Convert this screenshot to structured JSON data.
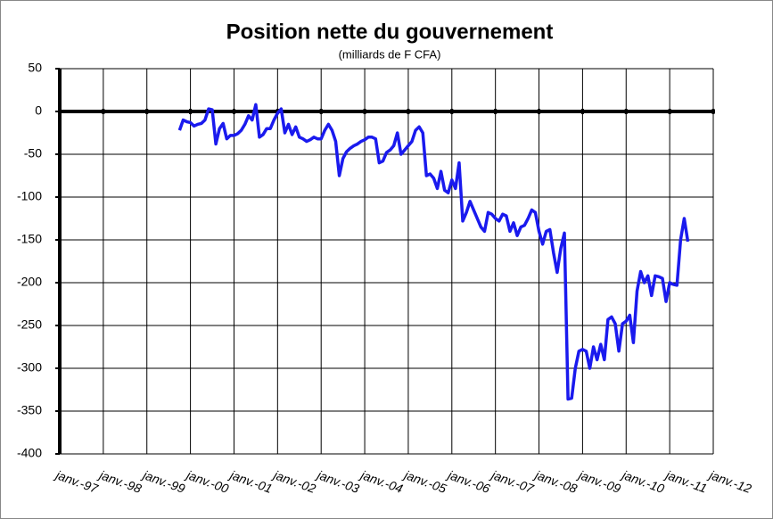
{
  "chart_data": {
    "type": "line",
    "title": "Position nette du gouvernement",
    "subtitle": "(milliards de F CFA)",
    "x": [
      "1999-10",
      "1999-11",
      "1999-12",
      "2000-01",
      "2000-02",
      "2000-03",
      "2000-04",
      "2000-05",
      "2000-06",
      "2000-07",
      "2000-08",
      "2000-09",
      "2000-10",
      "2000-11",
      "2000-12",
      "2001-01",
      "2001-02",
      "2001-03",
      "2001-04",
      "2001-05",
      "2001-06",
      "2001-07",
      "2001-08",
      "2001-09",
      "2001-10",
      "2001-11",
      "2001-12",
      "2002-01",
      "2002-02",
      "2002-03",
      "2002-04",
      "2002-05",
      "2002-06",
      "2002-07",
      "2002-08",
      "2002-09",
      "2002-10",
      "2002-11",
      "2002-12",
      "2003-01",
      "2003-02",
      "2003-03",
      "2003-04",
      "2003-05",
      "2003-06",
      "2003-07",
      "2003-08",
      "2003-09",
      "2003-10",
      "2003-11",
      "2003-12",
      "2004-01",
      "2004-02",
      "2004-03",
      "2004-04",
      "2004-05",
      "2004-06",
      "2004-07",
      "2004-08",
      "2004-09",
      "2004-10",
      "2004-11",
      "2004-12",
      "2005-01",
      "2005-02",
      "2005-03",
      "2005-04",
      "2005-05",
      "2005-06",
      "2005-07",
      "2005-08",
      "2005-09",
      "2005-10",
      "2005-11",
      "2005-12",
      "2006-01",
      "2006-02",
      "2006-03",
      "2006-04",
      "2006-05",
      "2006-06",
      "2006-07",
      "2006-08",
      "2006-09",
      "2006-10",
      "2006-11",
      "2006-12",
      "2007-01",
      "2007-02",
      "2007-03",
      "2007-04",
      "2007-05",
      "2007-06",
      "2007-07",
      "2007-08",
      "2007-09",
      "2007-10",
      "2007-11",
      "2007-12",
      "2008-01",
      "2008-02",
      "2008-03",
      "2008-04",
      "2008-05",
      "2008-06",
      "2008-07",
      "2008-08",
      "2008-09",
      "2008-10",
      "2008-11",
      "2008-12",
      "2009-01",
      "2009-02",
      "2009-03",
      "2009-04",
      "2009-05",
      "2009-06",
      "2009-07",
      "2009-08",
      "2009-09",
      "2009-10",
      "2009-11",
      "2009-12",
      "2010-01",
      "2010-02",
      "2010-03",
      "2010-04",
      "2010-05",
      "2010-06",
      "2010-07",
      "2010-08",
      "2010-09",
      "2010-10",
      "2010-11",
      "2010-12",
      "2011-01",
      "2011-02",
      "2011-03",
      "2011-04",
      "2011-05",
      "2011-06"
    ],
    "values": [
      -22,
      -10,
      -12,
      -13,
      -17,
      -15,
      -14,
      -10,
      3,
      2,
      -38,
      -20,
      -14,
      -32,
      -28,
      -28,
      -26,
      -22,
      -15,
      -5,
      -10,
      8,
      -30,
      -27,
      -20,
      -20,
      -10,
      -2,
      3,
      -25,
      -15,
      -27,
      -18,
      -30,
      -32,
      -35,
      -33,
      -30,
      -32,
      -32,
      -22,
      -15,
      -22,
      -35,
      -75,
      -55,
      -47,
      -43,
      -40,
      -38,
      -35,
      -33,
      -30,
      -30,
      -32,
      -60,
      -58,
      -48,
      -45,
      -40,
      -25,
      -50,
      -45,
      -40,
      -35,
      -22,
      -18,
      -25,
      -75,
      -73,
      -78,
      -90,
      -70,
      -92,
      -95,
      -80,
      -90,
      -60,
      -128,
      -118,
      -105,
      -115,
      -125,
      -135,
      -140,
      -118,
      -120,
      -125,
      -128,
      -120,
      -122,
      -140,
      -130,
      -145,
      -135,
      -133,
      -125,
      -115,
      -118,
      -140,
      -155,
      -140,
      -138,
      -165,
      -188,
      -160,
      -142,
      -336,
      -335,
      -300,
      -280,
      -278,
      -280,
      -300,
      -275,
      -290,
      -272,
      -290,
      -243,
      -240,
      -248,
      -280,
      -248,
      -245,
      -238,
      -270,
      -210,
      -187,
      -200,
      -192,
      -215,
      -192,
      -193,
      -195,
      -222,
      -200,
      -202,
      -203,
      -150,
      -125,
      -152
    ],
    "color": "#1a1aee",
    "xlim": [
      "1997-01",
      "2012-01"
    ],
    "xticks": [
      {
        "value": "1997-01",
        "label": "janv.-97"
      },
      {
        "value": "1998-01",
        "label": "janv.-98"
      },
      {
        "value": "1999-01",
        "label": "janv.-99"
      },
      {
        "value": "2000-01",
        "label": "janv.-00"
      },
      {
        "value": "2001-01",
        "label": "janv.-01"
      },
      {
        "value": "2002-01",
        "label": "janv.-02"
      },
      {
        "value": "2003-01",
        "label": "janv.-03"
      },
      {
        "value": "2004-01",
        "label": "janv.-04"
      },
      {
        "value": "2005-01",
        "label": "janv.-05"
      },
      {
        "value": "2006-01",
        "label": "janv.-06"
      },
      {
        "value": "2007-01",
        "label": "janv.-07"
      },
      {
        "value": "2008-01",
        "label": "janv.-08"
      },
      {
        "value": "2009-01",
        "label": "janv.-09"
      },
      {
        "value": "2010-01",
        "label": "janv.-10"
      },
      {
        "value": "2011-01",
        "label": "janv.-11"
      },
      {
        "value": "2012-01",
        "label": "janv.-12"
      }
    ],
    "ylim": [
      -400,
      50
    ],
    "yticks": [
      50,
      0,
      -50,
      -100,
      -150,
      -200,
      -250,
      -300,
      -350,
      -400
    ],
    "grid": true
  }
}
